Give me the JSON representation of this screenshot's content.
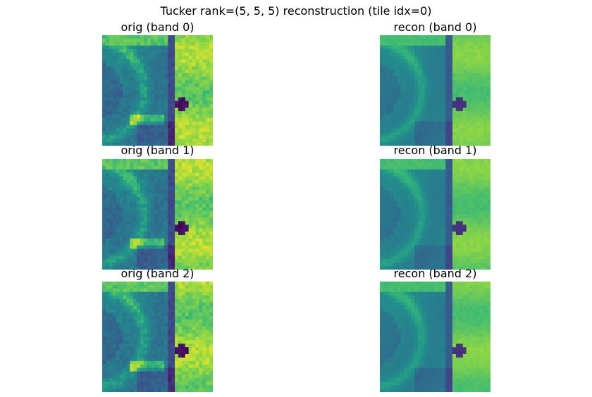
{
  "chart_data": {
    "type": "heatmap",
    "title": "Tucker rank=(5, 5, 5) reconstruction (tile idx=0)",
    "colormap": "viridis",
    "axes_visible": false,
    "panels": [
      {
        "title": "orig (band 0)",
        "kind": "orig",
        "band": 0
      },
      {
        "title": "recon (band 0)",
        "kind": "recon",
        "band": 0
      },
      {
        "title": "orig (band 1)",
        "kind": "orig",
        "band": 1
      },
      {
        "title": "recon (band 1)",
        "kind": "recon",
        "band": 1
      },
      {
        "title": "orig (band 2)",
        "kind": "orig",
        "band": 2
      },
      {
        "title": "recon (band 2)",
        "kind": "recon",
        "band": 2
      }
    ]
  }
}
